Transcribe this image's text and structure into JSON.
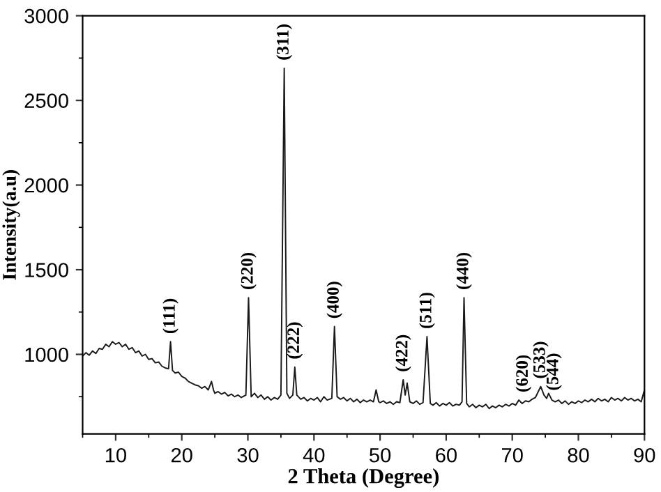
{
  "chart_data": {
    "type": "line",
    "xlabel": "2 Theta (Degree)",
    "ylabel": "Intensity(a.u)",
    "xlim": [
      5,
      90
    ],
    "xticks": [
      10,
      20,
      30,
      40,
      50,
      60,
      70,
      80,
      90
    ],
    "ylim": [
      530,
      3000
    ],
    "yticks": [
      1000,
      1500,
      2000,
      2500,
      3000
    ],
    "grid": false,
    "legend": false,
    "marker": "none",
    "line_style": "solid",
    "series": [
      {
        "color": "#1a1a1a",
        "x": [
          5,
          5.5,
          6,
          6.5,
          7,
          7.5,
          8,
          8.5,
          9,
          9.5,
          10,
          10.5,
          11,
          11.5,
          12,
          12.5,
          13,
          13.5,
          14,
          14.5,
          15,
          15.5,
          16,
          16.5,
          17,
          17.5,
          18,
          18.3,
          18.6,
          19,
          19.5,
          20,
          20.5,
          21,
          21.5,
          22,
          22.5,
          23,
          23.5,
          24,
          24.5,
          24.8,
          25,
          25.5,
          26,
          26.5,
          27,
          27.5,
          28,
          28.5,
          29,
          29.7,
          30.1,
          30.5,
          31,
          31.5,
          32,
          32.5,
          33,
          33.5,
          34,
          34.5,
          35,
          35.5,
          35.9,
          36.3,
          36.8,
          37.1,
          37.4,
          38,
          38.5,
          39,
          39.5,
          40,
          40.5,
          41,
          41.5,
          42,
          42.7,
          43.1,
          43.5,
          44,
          44.5,
          45,
          45.5,
          46,
          46.5,
          47,
          47.5,
          48,
          48.5,
          49,
          49.4,
          49.8,
          50,
          50.5,
          51,
          51.5,
          52,
          52.5,
          53,
          53.5,
          53.8,
          54.1,
          54.5,
          55,
          55.5,
          56,
          56.5,
          57.1,
          57.6,
          58,
          58.5,
          59,
          59.5,
          60,
          60.5,
          61,
          61.5,
          62,
          62.4,
          62.7,
          63.1,
          63.5,
          64,
          64.5,
          65,
          65.5,
          66,
          66.5,
          67,
          67.5,
          68,
          68.5,
          69,
          69.5,
          70,
          70.5,
          71,
          71.5,
          72,
          72.5,
          73,
          73.5,
          74.3,
          74.8,
          75.2,
          75.5,
          76,
          76.5,
          77,
          77.5,
          78,
          78.5,
          79,
          79.5,
          80,
          80.5,
          81,
          81.5,
          82,
          82.5,
          83,
          83.5,
          84,
          84.5,
          85,
          85.5,
          86,
          86.5,
          87,
          87.5,
          88,
          88.5,
          89,
          89.5,
          90
        ],
        "values": [
          990,
          1010,
          995,
          1020,
          1005,
          1035,
          1030,
          1060,
          1045,
          1075,
          1060,
          1070,
          1045,
          1060,
          1030,
          1040,
          1010,
          1020,
          990,
          1000,
          970,
          975,
          950,
          955,
          930,
          920,
          915,
          1075,
          905,
          890,
          895,
          870,
          860,
          840,
          830,
          820,
          815,
          800,
          810,
          790,
          840,
          790,
          770,
          780,
          765,
          775,
          755,
          765,
          750,
          760,
          745,
          760,
          1335,
          750,
          770,
          745,
          760,
          735,
          750,
          730,
          745,
          735,
          760,
          2690,
          770,
          740,
          760,
          925,
          760,
          735,
          745,
          725,
          740,
          730,
          745,
          720,
          750,
          730,
          740,
          1165,
          750,
          735,
          745,
          725,
          740,
          720,
          735,
          715,
          730,
          720,
          730,
          720,
          790,
          720,
          715,
          725,
          710,
          720,
          705,
          720,
          715,
          850,
          760,
          830,
          720,
          710,
          725,
          705,
          715,
          1105,
          710,
          700,
          715,
          695,
          710,
          700,
          715,
          695,
          705,
          700,
          720,
          1335,
          710,
          690,
          705,
          685,
          700,
          690,
          705,
          680,
          695,
          685,
          700,
          690,
          705,
          695,
          710,
          700,
          730,
          710,
          725,
          720,
          735,
          745,
          810,
          760,
          740,
          770,
          730,
          720,
          730,
          710,
          725,
          705,
          720,
          710,
          725,
          715,
          730,
          720,
          735,
          720,
          740,
          725,
          735,
          720,
          745,
          730,
          740,
          725,
          745,
          730,
          740,
          725,
          735,
          720,
          790
        ]
      }
    ],
    "annotations": [
      {
        "text": "(111)",
        "x": 18.3,
        "y": 1075
      },
      {
        "text": "(220)",
        "x": 30.1,
        "y": 1335
      },
      {
        "text": "(311)",
        "x": 35.5,
        "y": 2690
      },
      {
        "text": "(222)",
        "x": 37.1,
        "y": 925
      },
      {
        "text": "(400)",
        "x": 43.1,
        "y": 1165
      },
      {
        "text": "(422)",
        "x": 53.5,
        "y": 850
      },
      {
        "text": "(511)",
        "x": 57.1,
        "y": 1105
      },
      {
        "text": "(440)",
        "x": 62.7,
        "y": 1335
      },
      {
        "text": "(620)",
        "x": 71.7,
        "y": 730
      },
      {
        "text": "(533)",
        "x": 74.3,
        "y": 810
      },
      {
        "text": "(544)",
        "x": 76.3,
        "y": 740
      }
    ]
  }
}
